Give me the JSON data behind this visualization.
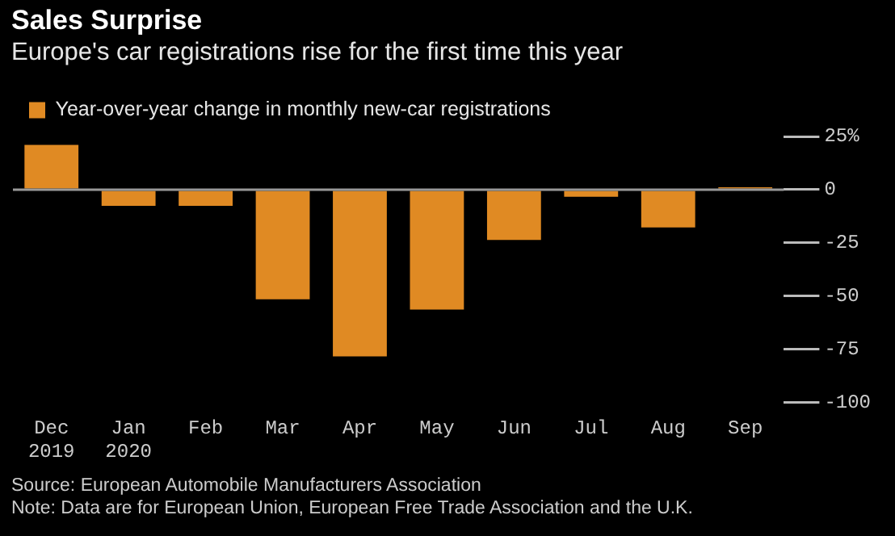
{
  "chart_data": {
    "type": "bar",
    "title": "Sales Surprise",
    "subtitle": "Europe's car registrations rise for the first time this year",
    "categories": [
      "Dec\n2019",
      "Jan\n2020",
      "Feb",
      "Mar",
      "Apr",
      "May",
      "Jun",
      "Jul",
      "Aug",
      "Sep"
    ],
    "series": [
      {
        "name": "Year-over-year change in monthly new-car registrations",
        "color": "#e08a23",
        "values": [
          21,
          -7.6,
          -7.6,
          -51.6,
          -78.4,
          -56.4,
          -23.7,
          -3.4,
          -17.8,
          1.1
        ]
      }
    ],
    "ylim": [
      -100,
      25
    ],
    "yticks": [
      {
        "value": 25,
        "label": "25%"
      },
      0,
      -25,
      -50,
      -75,
      -100
    ],
    "ref_lines": [
      {
        "axis": "y",
        "value": 0,
        "color": "#999999"
      }
    ],
    "grid": false,
    "legend": "top left",
    "annotations": [
      "Source: European Automobile Manufacturers Association",
      "Note: Data are for European Union, European Free Trade Association and the U.K."
    ]
  }
}
